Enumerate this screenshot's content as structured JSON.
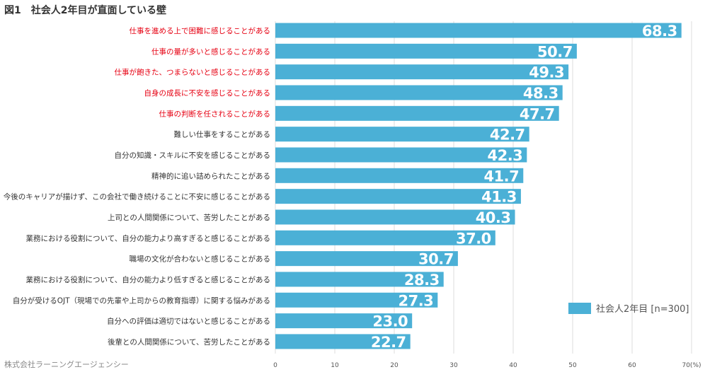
{
  "page": {
    "title": "図1　社会人2年目が直面している壁",
    "footer": "株式会社ラーニングエージェンシー"
  },
  "chart_data": {
    "type": "bar",
    "orientation": "horizontal",
    "title": "図1　社会人2年目が直面している壁",
    "categories": [
      "仕事を進める上で困難に感じることがある",
      "仕事の量が多いと感じることがある",
      "仕事が飽きた、つまらないと感じることがある",
      "自身の成長に不安を感じることがある",
      "仕事の判断を任されることがある",
      "難しい仕事をすることがある",
      "自分の知識・スキルに不安を感じることがある",
      "精神的に追い詰められたことがある",
      "今後のキャリアが描けず、この会社で働き続けることに不安に感じることがある",
      "上司との人間関係について、苦労したことがある",
      "業務における役割について、自分の能力より高すぎると感じることがある",
      "職場の文化が合わないと感じることがある",
      "業務における役割について、自分の能力より低すぎると感じることがある",
      "自分が受けるOJT（現場での先輩や上司からの教育指導）に関する悩みがある",
      "自分への評価は適切ではないと感じることがある",
      "後輩との人間関係について、苦労したことがある"
    ],
    "highlighted": [
      true,
      true,
      true,
      true,
      true,
      false,
      false,
      false,
      false,
      false,
      false,
      false,
      false,
      false,
      false,
      false
    ],
    "series": [
      {
        "name": "社会人2年目 [n=300]",
        "values": [
          68.3,
          50.7,
          49.3,
          48.3,
          47.7,
          42.7,
          42.3,
          41.7,
          41.3,
          40.3,
          37.0,
          30.7,
          28.3,
          27.3,
          23.0,
          22.7
        ]
      }
    ],
    "xlim": [
      0,
      70
    ],
    "xticks": [
      "0",
      "10",
      "20",
      "30",
      "40",
      "50",
      "60",
      "70"
    ],
    "xunit": "(%)",
    "legend": {
      "position": "bottom-right",
      "label": "社会人2年目 [n=300]"
    },
    "colors": {
      "bar": "#4bb0d6",
      "highlight_text": "#e60012",
      "text": "#333333"
    }
  }
}
